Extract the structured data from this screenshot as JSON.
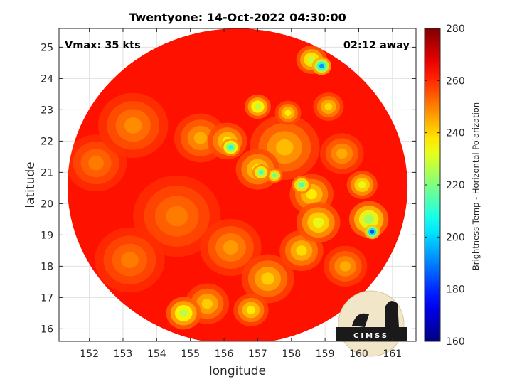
{
  "chart_data": {
    "type": "heatmap",
    "title": "Twentyone: 14-Oct-2022 04:30:00",
    "annotations": {
      "vmax": "Vmax: 35 kts",
      "away": "02:12 away"
    },
    "xlabel": "longitude",
    "ylabel": "latitude",
    "xlim": [
      151.1,
      161.7
    ],
    "ylim": [
      15.6,
      25.6
    ],
    "x_ticks": [
      152,
      153,
      154,
      155,
      156,
      157,
      158,
      159,
      160,
      161
    ],
    "y_ticks": [
      16,
      17,
      18,
      19,
      20,
      21,
      22,
      23,
      24,
      25
    ],
    "grid": true,
    "colorbar": {
      "label": "Brightness Temp - Horizontal Polarization",
      "range": [
        160,
        280
      ],
      "ticks": [
        160,
        180,
        200,
        220,
        240,
        260,
        280
      ],
      "colormap": "jet"
    },
    "swath": {
      "center": [
        156.4,
        20.55
      ],
      "radius_deg": 5.05,
      "background_value": 263
    },
    "cold_features": [
      {
        "lon": 158.9,
        "lat": 24.4,
        "value": 190,
        "spread": 0.22
      },
      {
        "lon": 158.6,
        "lat": 24.6,
        "value": 228,
        "spread": 0.35
      },
      {
        "lon": 160.4,
        "lat": 19.1,
        "value": 180,
        "spread": 0.18
      },
      {
        "lon": 160.3,
        "lat": 19.5,
        "value": 222,
        "spread": 0.45
      },
      {
        "lon": 160.1,
        "lat": 20.6,
        "value": 232,
        "spread": 0.35
      },
      {
        "lon": 156.2,
        "lat": 21.8,
        "value": 205,
        "spread": 0.22
      },
      {
        "lon": 156.1,
        "lat": 22.0,
        "value": 236,
        "spread": 0.45
      },
      {
        "lon": 157.1,
        "lat": 21.0,
        "value": 210,
        "spread": 0.2
      },
      {
        "lon": 157.5,
        "lat": 20.9,
        "value": 215,
        "spread": 0.18
      },
      {
        "lon": 157.0,
        "lat": 21.1,
        "value": 236,
        "spread": 0.5
      },
      {
        "lon": 158.3,
        "lat": 20.6,
        "value": 212,
        "spread": 0.22
      },
      {
        "lon": 158.6,
        "lat": 20.3,
        "value": 236,
        "spread": 0.5
      },
      {
        "lon": 157.0,
        "lat": 23.1,
        "value": 226,
        "spread": 0.3
      },
      {
        "lon": 157.9,
        "lat": 22.9,
        "value": 236,
        "spread": 0.3
      },
      {
        "lon": 158.8,
        "lat": 19.4,
        "value": 232,
        "spread": 0.5
      },
      {
        "lon": 158.3,
        "lat": 18.5,
        "value": 238,
        "spread": 0.5
      },
      {
        "lon": 157.3,
        "lat": 17.6,
        "value": 240,
        "spread": 0.6
      },
      {
        "lon": 154.8,
        "lat": 16.5,
        "value": 226,
        "spread": 0.4
      },
      {
        "lon": 155.5,
        "lat": 16.8,
        "value": 240,
        "spread": 0.5
      },
      {
        "lon": 156.8,
        "lat": 16.6,
        "value": 236,
        "spread": 0.4
      },
      {
        "lon": 159.1,
        "lat": 23.1,
        "value": 238,
        "spread": 0.35
      },
      {
        "lon": 157.8,
        "lat": 21.8,
        "value": 242,
        "spread": 0.8
      },
      {
        "lon": 155.3,
        "lat": 22.1,
        "value": 244,
        "spread": 0.6
      },
      {
        "lon": 159.5,
        "lat": 21.6,
        "value": 244,
        "spread": 0.5
      },
      {
        "lon": 153.3,
        "lat": 22.5,
        "value": 248,
        "spread": 0.8
      },
      {
        "lon": 154.6,
        "lat": 19.6,
        "value": 250,
        "spread": 1.0
      },
      {
        "lon": 153.2,
        "lat": 18.2,
        "value": 250,
        "spread": 0.8
      },
      {
        "lon": 152.2,
        "lat": 21.3,
        "value": 250,
        "spread": 0.7
      },
      {
        "lon": 156.2,
        "lat": 18.6,
        "value": 246,
        "spread": 0.7
      },
      {
        "lon": 159.6,
        "lat": 18.0,
        "value": 244,
        "spread": 0.5
      }
    ]
  },
  "logo": {
    "text": "CIMSS"
  }
}
